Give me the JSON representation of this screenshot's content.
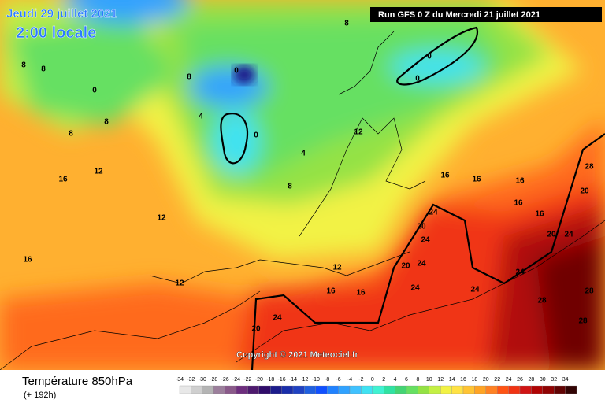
{
  "header": {
    "date": "Jeudi 29 juillet 2021",
    "time": "2:00 locale",
    "run": "Run GFS 0 Z du Mercredi 21 juillet 2021",
    "copyright": "Copyright © 2021 Meteociel.fr"
  },
  "footer": {
    "title": "Température 850hPa",
    "lead": "(+ 192h)"
  },
  "legend": {
    "ticks": [
      -34,
      -32,
      -30,
      -28,
      -26,
      -24,
      -22,
      -20,
      -18,
      -16,
      -14,
      -12,
      -10,
      -8,
      -6,
      -4,
      -2,
      0,
      2,
      4,
      6,
      8,
      10,
      12,
      14,
      16,
      18,
      20,
      22,
      24,
      26,
      28,
      30,
      32,
      34
    ],
    "colors": [
      "#e8e8e8",
      "#cfcfcf",
      "#b4b4b4",
      "#9c7f9c",
      "#8a5a8a",
      "#6e2e7e",
      "#4e1a6e",
      "#300c6a",
      "#1c1c8c",
      "#1a2eaa",
      "#2042c2",
      "#2060e0",
      "#1050ff",
      "#2082ff",
      "#30a2ff",
      "#40c2ff",
      "#40e2f2",
      "#40f2d2",
      "#30e2a2",
      "#44d474",
      "#66e062",
      "#94e244",
      "#c4f044",
      "#f2f244",
      "#ffe244",
      "#ffc434",
      "#ffa424",
      "#ff8224",
      "#ff5414",
      "#f03414",
      "#d01414",
      "#b00404",
      "#900404",
      "#620404",
      "#320404"
    ]
  },
  "contour_labels": [
    8,
    8,
    0,
    8,
    8,
    0,
    0,
    4,
    8,
    0,
    8,
    0,
    4,
    8,
    12,
    16,
    16,
    16,
    12,
    12,
    16,
    16,
    12,
    12,
    16,
    16,
    20,
    24,
    24,
    24,
    20,
    24,
    28,
    24,
    28,
    24,
    20,
    16,
    16,
    20,
    24,
    28,
    28,
    24,
    20
  ]
}
